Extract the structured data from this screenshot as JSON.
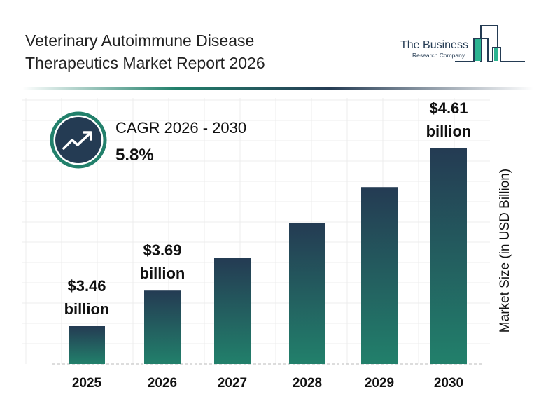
{
  "header": {
    "title_line1": "Veterinary Autoimmune Disease",
    "title_line2": "Therapeutics Market Report 2026"
  },
  "logo": {
    "line1": "The Business",
    "line2": "Research Company"
  },
  "cagr": {
    "label": "CAGR 2026 - 2030",
    "value": "5.8%",
    "icon": "trending-up-icon"
  },
  "colors": {
    "bar_top": "#243b53",
    "bar_bottom": "#22806b",
    "accent": "#22806b"
  },
  "chart_data": {
    "type": "bar",
    "categories": [
      "2025",
      "2026",
      "2027",
      "2028",
      "2029",
      "2030"
    ],
    "values": [
      3.46,
      3.69,
      3.9,
      4.13,
      4.36,
      4.61
    ],
    "data_labels": [
      {
        "index": 0,
        "amount": "$3.46",
        "unit": "billion"
      },
      {
        "index": 1,
        "amount": "$3.69",
        "unit": "billion"
      },
      {
        "index": 5,
        "amount": "$4.61",
        "unit": "billion"
      }
    ],
    "title": "Veterinary Autoimmune Disease Therapeutics Market Report 2026",
    "xlabel": "",
    "ylabel": "Market Size (in USD Billion)",
    "grid": true
  }
}
